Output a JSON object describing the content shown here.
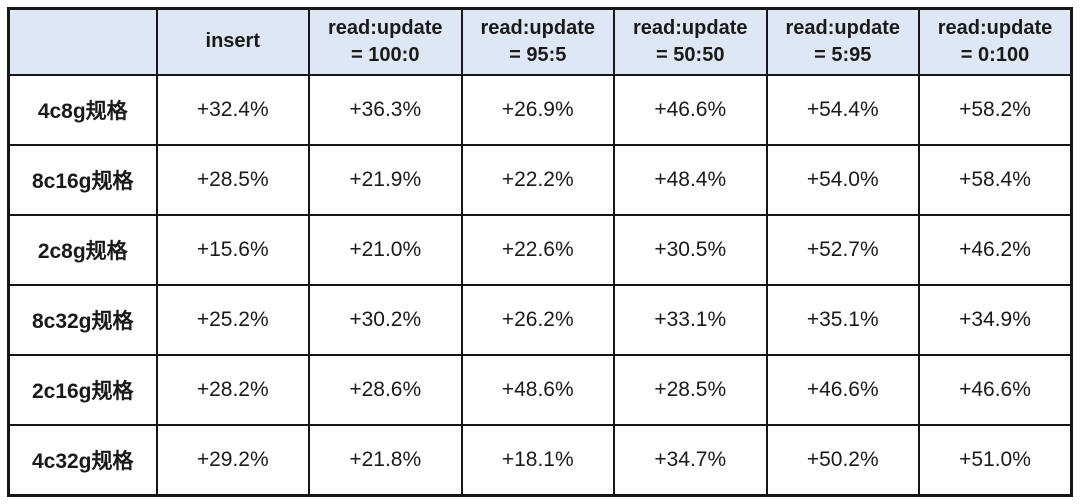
{
  "page": {
    "background": "#ffffff"
  },
  "table_style": {
    "header_bg": "#dde8f4",
    "border_color": "#161616",
    "text_color": "#1a1a1a",
    "body_bg": "#ffffff"
  },
  "chart_data": {
    "type": "table",
    "description": "Performance improvement percentages by instance spec and workload type",
    "columns": [
      {
        "line1": "",
        "line2": ""
      },
      {
        "line1": "insert",
        "line2": ""
      },
      {
        "line1": "read:update",
        "line2": "= 100:0"
      },
      {
        "line1": "read:update",
        "line2": "= 95:5"
      },
      {
        "line1": "read:update",
        "line2": "= 50:50"
      },
      {
        "line1": "read:update",
        "line2": "= 5:95"
      },
      {
        "line1": "read:update",
        "line2": "= 0:100"
      }
    ],
    "rows": [
      {
        "label": "4c8g规格",
        "values": [
          "+32.4%",
          "+36.3%",
          "+26.9%",
          "+46.6%",
          "+54.4%",
          "+58.2%"
        ]
      },
      {
        "label": "8c16g规格",
        "values": [
          "+28.5%",
          "+21.9%",
          "+22.2%",
          "+48.4%",
          "+54.0%",
          "+58.4%"
        ]
      },
      {
        "label": "2c8g规格",
        "values": [
          "+15.6%",
          "+21.0%",
          "+22.6%",
          "+30.5%",
          "+52.7%",
          "+46.2%"
        ]
      },
      {
        "label": "8c32g规格",
        "values": [
          "+25.2%",
          "+30.2%",
          "+26.2%",
          "+33.1%",
          "+35.1%",
          "+34.9%"
        ]
      },
      {
        "label": "2c16g规格",
        "values": [
          "+28.2%",
          "+28.6%",
          "+48.6%",
          "+28.5%",
          "+46.6%",
          "+46.6%"
        ]
      },
      {
        "label": "4c32g规格",
        "values": [
          "+29.2%",
          "+21.8%",
          "+18.1%",
          "+34.7%",
          "+50.2%",
          "+51.0%"
        ]
      }
    ]
  }
}
